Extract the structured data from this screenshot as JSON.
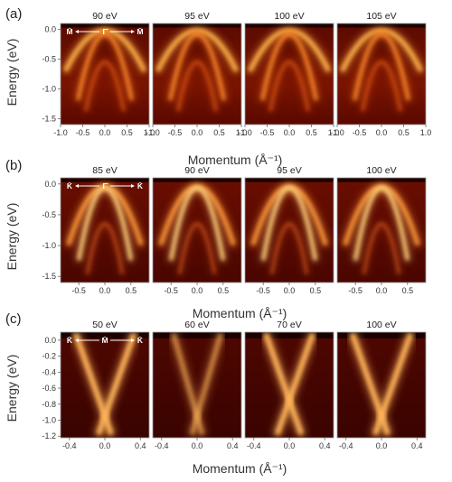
{
  "rows": [
    {
      "id": "a",
      "label": "(a)",
      "ylabel": "Energy (eV)",
      "xlabel": "Momentum (Å⁻¹)",
      "ylim": [
        -1.6,
        0.1
      ],
      "xlim": [
        -1.0,
        1.0
      ],
      "yticks": [
        {
          "v": 0.0,
          "t": "0.0"
        },
        {
          "v": -0.5,
          "t": "-0.5"
        },
        {
          "v": -1.0,
          "t": "-1.0"
        },
        {
          "v": -1.5,
          "t": "-1.5"
        }
      ],
      "xticks": [
        {
          "v": -1.0,
          "t": "-1.0"
        },
        {
          "v": -0.5,
          "t": "-0.5"
        },
        {
          "v": 0.0,
          "t": "0.0"
        },
        {
          "v": 0.5,
          "t": "0.5"
        },
        {
          "v": 1.0,
          "t": "1.0"
        }
      ],
      "symmetry_labels": [
        "M̄",
        "Γ̄",
        "M̄"
      ],
      "panels": [
        {
          "title": "90 eV"
        },
        {
          "title": "95 eV"
        },
        {
          "title": "100 eV"
        },
        {
          "title": "105 eV"
        }
      ]
    },
    {
      "id": "b",
      "label": "(b)",
      "ylabel": "Energy (eV)",
      "xlabel": "Momentum (Å⁻¹)",
      "ylim": [
        -1.6,
        0.1
      ],
      "xlim": [
        -0.85,
        0.85
      ],
      "yticks": [
        {
          "v": 0.0,
          "t": "0.0"
        },
        {
          "v": -0.5,
          "t": "-0.5"
        },
        {
          "v": -1.0,
          "t": "-1.0"
        },
        {
          "v": -1.5,
          "t": "-1.5"
        }
      ],
      "xticks": [
        {
          "v": -0.5,
          "t": "-0.5"
        },
        {
          "v": 0.0,
          "t": "0.0"
        },
        {
          "v": 0.5,
          "t": "0.5"
        }
      ],
      "symmetry_labels": [
        "K̄",
        "Γ̄",
        "K̄"
      ],
      "panels": [
        {
          "title": "85 eV"
        },
        {
          "title": "90 eV"
        },
        {
          "title": "95 eV"
        },
        {
          "title": "100 eV"
        }
      ]
    },
    {
      "id": "c",
      "label": "(c)",
      "ylabel": "Energy (eV)",
      "xlabel": "Momentum (Å⁻¹)",
      "ylim": [
        -1.22,
        0.1
      ],
      "xlim": [
        -0.5,
        0.5
      ],
      "yticks": [
        {
          "v": 0.0,
          "t": "0.0"
        },
        {
          "v": -0.2,
          "t": "-0.2"
        },
        {
          "v": -0.4,
          "t": "-0.4"
        },
        {
          "v": -0.6,
          "t": "-0.6"
        },
        {
          "v": -0.8,
          "t": "-0.8"
        },
        {
          "v": -1.0,
          "t": "-1.0"
        },
        {
          "v": -1.2,
          "t": "-1.2"
        }
      ],
      "xticks": [
        {
          "v": -0.4,
          "t": "-0.4"
        },
        {
          "v": 0.0,
          "t": "0.0"
        },
        {
          "v": 0.4,
          "t": "0.4"
        }
      ],
      "symmetry_labels": [
        "K̄",
        "M̄",
        "K̄"
      ],
      "panels": [
        {
          "title": "50 eV"
        },
        {
          "title": "60 eV"
        },
        {
          "title": "70 eV"
        },
        {
          "title": "100 eV"
        }
      ]
    }
  ],
  "colors": {
    "background": "#ffffff",
    "map_dark": "#3a0000",
    "map_mid": "#c83a00",
    "map_bright": "#ffe7b0"
  }
}
